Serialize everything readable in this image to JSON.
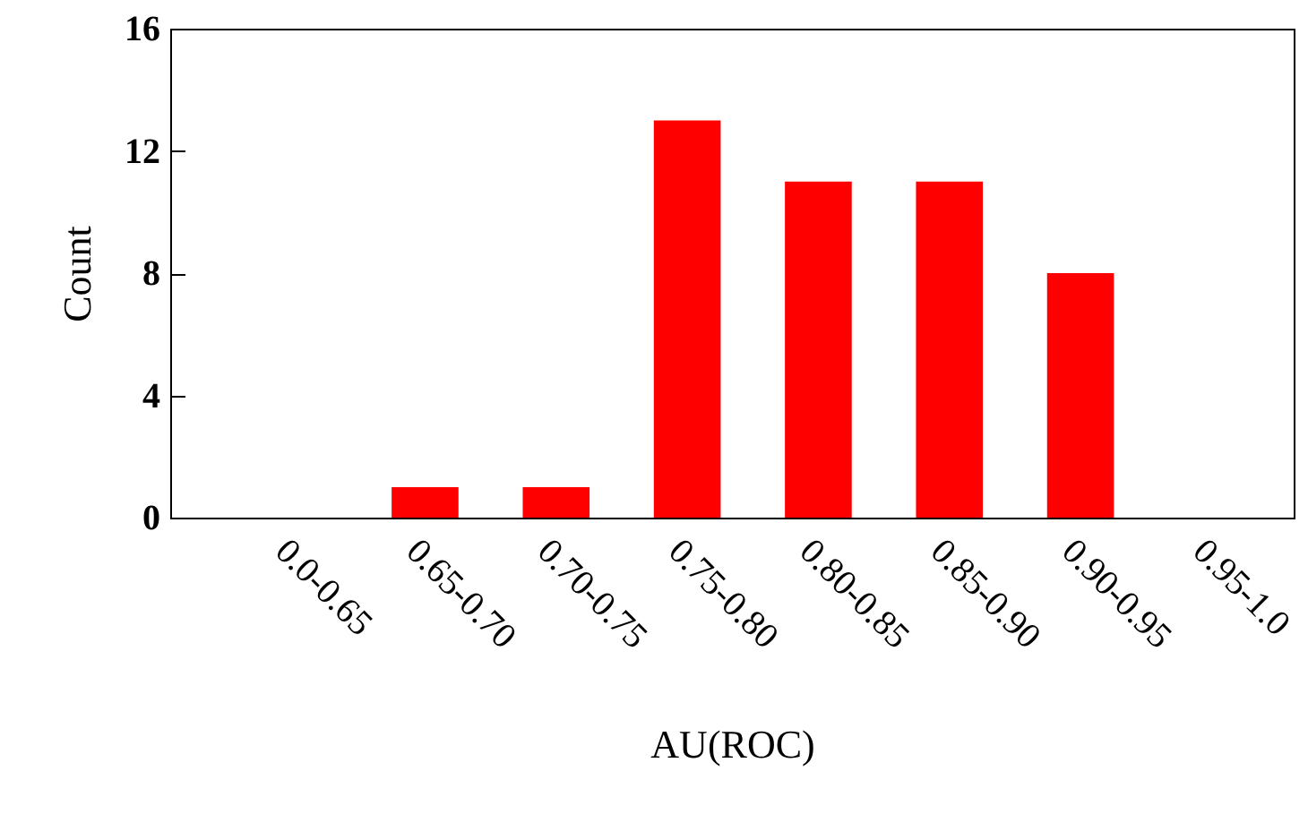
{
  "chart_data": {
    "type": "bar",
    "xlabel": "AU(ROC)",
    "ylabel": "Count",
    "categories": [
      "0.0-0.65",
      "0.65-0.70",
      "0.70-0.75",
      "0.75-0.80",
      "0.80-0.85",
      "0.85-0.90",
      "0.90-0.95",
      "0.95-1.0"
    ],
    "values": [
      0,
      1,
      1,
      13,
      11,
      11,
      8,
      0
    ],
    "color": "#ff0000",
    "ylim": [
      0,
      16
    ],
    "yticks": [
      0,
      4,
      8,
      12,
      16
    ],
    "grid": false
  }
}
